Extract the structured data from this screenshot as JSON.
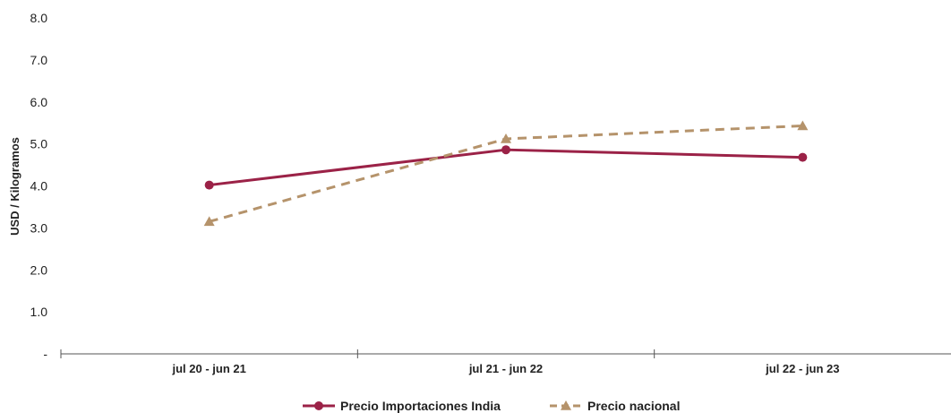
{
  "chart_data": {
    "type": "line",
    "categories": [
      "jul 20 - jun 21",
      "jul 21 - jun 22",
      "jul 22 - jun 23"
    ],
    "series": [
      {
        "name": "Precio Importaciones India",
        "values": [
          4.02,
          4.86,
          4.68
        ],
        "color": "#9b2247",
        "style": "solid",
        "marker": "circle"
      },
      {
        "name": "Precio nacional",
        "values": [
          3.15,
          5.12,
          5.43
        ],
        "color": "#b5936b",
        "style": "dashed",
        "marker": "triangle"
      }
    ],
    "ylabel": "USD / Kilogramos",
    "ylim": [
      0,
      8
    ],
    "yticks": [
      {
        "value": 0,
        "label": "-"
      },
      {
        "value": 1,
        "label": "1.0"
      },
      {
        "value": 2,
        "label": "2.0"
      },
      {
        "value": 3,
        "label": "3.0"
      },
      {
        "value": 4,
        "label": "4.0"
      },
      {
        "value": 5,
        "label": "5.0"
      },
      {
        "value": 6,
        "label": "6.0"
      },
      {
        "value": 7,
        "label": "7.0"
      },
      {
        "value": 8,
        "label": "8.0"
      }
    ],
    "grid": false,
    "legend": "bottom"
  }
}
